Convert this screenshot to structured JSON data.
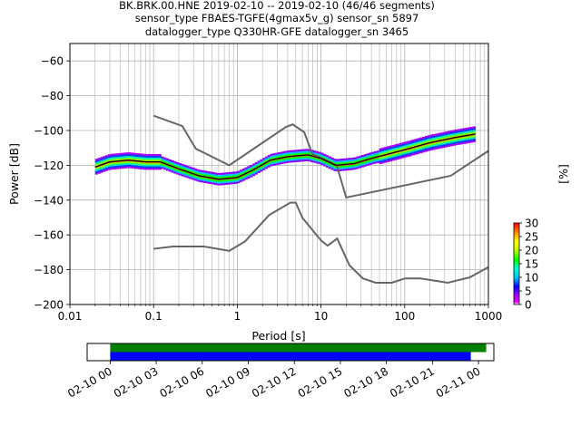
{
  "title_lines": [
    "BK.BRK.00.HNE   2019-02-10 -- 2019-02-10  (46/46 segments)",
    "sensor_type FBAES-TGFE(4gmax5v_g) sensor_sn 5897",
    "datalogger_type Q330HR-GFE datalogger_sn 3465"
  ],
  "chart_data": [
    {
      "type": "heatmap",
      "xlabel": "Period [s]",
      "ylabel": "Power [dB]",
      "xscale": "log",
      "xlim": [
        0.01,
        1000
      ],
      "ylim": [
        -200,
        -50
      ],
      "grid": true,
      "x_ticks": [
        0.01,
        0.1,
        1,
        10,
        100,
        1000
      ],
      "x_tick_labels": [
        "0.01",
        "0.1",
        "1",
        "10",
        "100",
        "1000"
      ],
      "y_ticks": [
        -200,
        -180,
        -160,
        -140,
        -120,
        -100,
        -80,
        -60
      ],
      "y_tick_labels": [
        "−200",
        "−180",
        "−160",
        "−140",
        "−120",
        "−100",
        "−80",
        "−60"
      ],
      "colorbar": {
        "label": "[%]",
        "range": [
          0,
          30
        ],
        "ticks": [
          0,
          5,
          10,
          15,
          20,
          25,
          30
        ],
        "tick_labels": [
          "0",
          "5",
          "10",
          "15",
          "20",
          "25",
          "30"
        ]
      },
      "mean_curve": {
        "x": [
          0.02,
          0.03,
          0.05,
          0.08,
          0.12,
          0.2,
          0.35,
          0.6,
          1,
          1.5,
          2.5,
          4,
          7,
          10,
          15,
          25,
          40,
          70,
          120,
          200,
          400,
          700
        ],
        "y": [
          -121,
          -118,
          -117,
          -118,
          -118,
          -122,
          -126,
          -128,
          -127,
          -123,
          -117,
          -115,
          -114,
          -116,
          -120,
          -119,
          -116,
          -113,
          -110,
          -107,
          -104,
          -102
        ]
      },
      "noise_models": [
        {
          "x": [
            0.1,
            0.22,
            0.32,
            0.8,
            3.8,
            4.6,
            6.3,
            7.9,
            15.4,
            20,
            354.8,
            10000
          ],
          "y": [
            -91.5,
            -97.4,
            -110.5,
            -120,
            -98,
            -96.5,
            -101,
            -113.5,
            -120,
            -138.5,
            -126,
            -80
          ]
        },
        {
          "x": [
            0.1,
            0.17,
            0.4,
            0.8,
            1.24,
            2.4,
            4.3,
            5,
            6,
            10,
            12,
            15.6,
            21.9,
            31.6,
            45,
            70,
            101,
            154,
            328,
            600,
            10000
          ],
          "y": [
            -168,
            -166.7,
            -166.7,
            -169.2,
            -163.7,
            -148.6,
            -141.5,
            -141.5,
            -150.2,
            -163.2,
            -166.2,
            -162.1,
            -177.5,
            -185,
            -187.5,
            -187.5,
            -185,
            -185,
            -187.5,
            -184.4,
            -151.9
          ]
        }
      ]
    },
    {
      "type": "timeline",
      "x_tick_labels": [
        "02-10 00",
        "02-10 03",
        "02-10 06",
        "02-10 09",
        "02-10 12",
        "02-10 15",
        "02-10 18",
        "02-10 21",
        "02-11 00"
      ],
      "xlim_hours": [
        -1.5,
        25.0
      ],
      "bars": [
        {
          "color": "#008000",
          "start_hours": 0,
          "end_hours": 24.5
        },
        {
          "color": "#0000ff",
          "start_hours": 0,
          "end_hours": 23.5
        }
      ]
    }
  ]
}
